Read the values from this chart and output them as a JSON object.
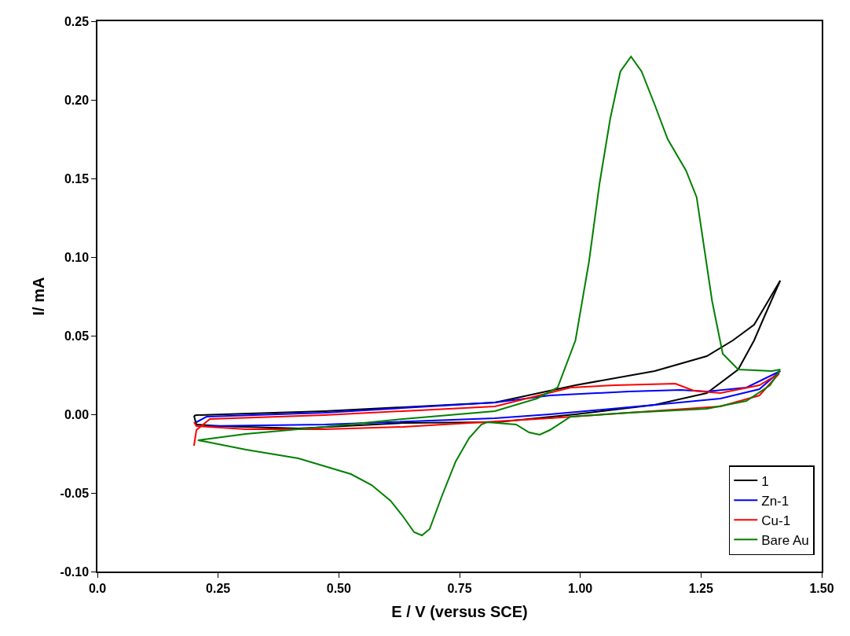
{
  "chart_data": {
    "type": "line",
    "xlabel": "E / V (versus SCE)",
    "ylabel": "I/ mA",
    "xlim": [
      0.0,
      1.5
    ],
    "xticks": [
      {
        "value": 0,
        "label": "0.0"
      },
      0.25,
      {
        "value": 0.5,
        "label": "0.50"
      },
      0.75,
      {
        "value": 1,
        "label": "1.00"
      },
      1.25,
      {
        "value": 1.5,
        "label": "1.50"
      }
    ],
    "ylim": [
      -0.1,
      0.25
    ],
    "yticks": [
      {
        "value": -0.1,
        "label": "-0.10"
      },
      -0.05,
      {
        "value": 0,
        "label": "0.00"
      },
      0.05,
      {
        "value": 0.1,
        "label": "0.10"
      },
      0.15,
      {
        "value": 0.2,
        "label": "0.20"
      },
      0.25
    ],
    "legend": "bottom right",
    "marker": "none",
    "line_style": "solid",
    "series": [
      {
        "name": "1",
        "color": "#000000",
        "x": [
          0.2,
          0.205,
          0.47,
          0.823,
          0.99,
          1.154,
          1.262,
          1.316,
          1.36,
          1.414
        ],
        "values": [
          -0.001,
          -0.0005,
          0.002,
          0.0075,
          0.0185,
          0.0275,
          0.037,
          0.047,
          0.057,
          0.085
        ]
      },
      {
        "color": "#000000",
        "x": [
          1.414,
          1.381,
          1.36,
          1.327,
          1.262,
          1.154,
          0.99,
          0.828,
          0.633,
          0.416,
          0.254,
          0.205,
          0.2
        ],
        "values": [
          0.085,
          0.062,
          0.047,
          0.0285,
          0.0135,
          0.006,
          0.0,
          -0.005,
          -0.0055,
          -0.009,
          -0.0075,
          -0.0065,
          -0.001
        ]
      },
      {
        "name": "Zn-1",
        "color": "#0000ff",
        "x": [
          0.205,
          0.226,
          0.47,
          0.823,
          0.937,
          1.1,
          1.208,
          1.262,
          1.344,
          1.414
        ],
        "values": [
          -0.005,
          -0.0015,
          0.001,
          0.0075,
          0.012,
          0.0145,
          0.0155,
          0.0145,
          0.017,
          0.0275
        ]
      },
      {
        "color": "#0000ff",
        "x": [
          1.414,
          1.371,
          1.29,
          1.154,
          0.937,
          0.823,
          0.47,
          0.346,
          0.226
        ],
        "values": [
          0.0275,
          0.016,
          0.01,
          0.006,
          0.0,
          -0.0025,
          -0.0065,
          -0.007,
          -0.0075
        ]
      },
      {
        "name": "Cu-1",
        "color": "#ff0000",
        "x": [
          0.2,
          0.205,
          0.233,
          0.47,
          0.823,
          0.98,
          1.072,
          1.197,
          1.235,
          1.29,
          1.371,
          1.412
        ],
        "values": [
          -0.02,
          -0.01,
          -0.003,
          -0.0005,
          0.005,
          0.017,
          0.0185,
          0.0195,
          0.015,
          0.0135,
          0.0185,
          0.026
        ]
      },
      {
        "color": "#ff0000",
        "x": [
          1.412,
          1.371,
          1.29,
          1.1,
          0.937,
          0.633,
          0.47,
          0.308,
          0.205,
          0.2
        ],
        "values": [
          0.026,
          0.012,
          0.005,
          0.001,
          -0.0025,
          -0.008,
          -0.0095,
          -0.0095,
          -0.0075,
          -0.005
        ]
      },
      {
        "name": "Bare Au",
        "color": "#008000",
        "x": [
          0.208,
          0.307,
          0.47,
          0.633,
          0.823,
          0.91,
          0.953,
          0.99,
          1.018,
          1.04,
          1.062,
          1.083,
          1.105,
          1.127,
          1.154,
          1.181,
          1.219,
          1.241,
          1.257,
          1.273,
          1.295,
          1.327,
          1.397,
          1.414
        ],
        "values": [
          -0.0165,
          -0.0125,
          -0.008,
          -0.003,
          0.002,
          0.01,
          0.017,
          0.047,
          0.097,
          0.147,
          0.188,
          0.218,
          0.2275,
          0.218,
          0.197,
          0.175,
          0.155,
          0.138,
          0.105,
          0.072,
          0.0385,
          0.0285,
          0.0275,
          0.0285
        ]
      },
      {
        "color": "#008000",
        "x": [
          1.414,
          1.393,
          1.344,
          1.262,
          1.1,
          0.98,
          0.937,
          0.916,
          0.894,
          0.867,
          0.807,
          0.795,
          0.77,
          0.742,
          0.714,
          0.688,
          0.672,
          0.656,
          0.633,
          0.607,
          0.568,
          0.525,
          0.416,
          0.308,
          0.226,
          0.208
        ],
        "values": [
          0.0285,
          0.0185,
          0.0085,
          0.0035,
          0.001,
          -0.0015,
          -0.01,
          -0.013,
          -0.0115,
          -0.0065,
          -0.005,
          -0.0065,
          -0.015,
          -0.03,
          -0.0515,
          -0.073,
          -0.077,
          -0.075,
          -0.065,
          -0.055,
          -0.045,
          -0.038,
          -0.028,
          -0.0225,
          -0.0175,
          -0.0165
        ]
      }
    ]
  }
}
